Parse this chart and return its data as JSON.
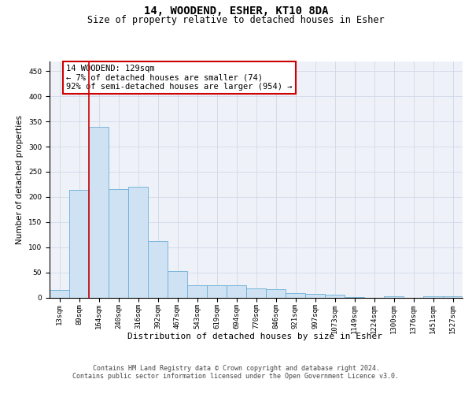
{
  "title": "14, WOODEND, ESHER, KT10 8DA",
  "subtitle": "Size of property relative to detached houses in Esher",
  "xlabel": "Distribution of detached houses by size in Esher",
  "ylabel": "Number of detached properties",
  "bar_labels": [
    "13sqm",
    "89sqm",
    "164sqm",
    "240sqm",
    "316sqm",
    "392sqm",
    "467sqm",
    "543sqm",
    "619sqm",
    "694sqm",
    "770sqm",
    "846sqm",
    "921sqm",
    "997sqm",
    "1073sqm",
    "1149sqm",
    "1224sqm",
    "1300sqm",
    "1376sqm",
    "1451sqm",
    "1527sqm"
  ],
  "bar_values": [
    15,
    214,
    339,
    215,
    220,
    112,
    53,
    25,
    24,
    24,
    18,
    17,
    9,
    7,
    6,
    1,
    0,
    3,
    0,
    3,
    2
  ],
  "bar_color": "#cfe2f3",
  "bar_edge_color": "#6baed6",
  "vline_x": 1.5,
  "vline_color": "#cc0000",
  "annotation_text": "14 WOODEND: 129sqm\n← 7% of detached houses are smaller (74)\n92% of semi-detached houses are larger (954) →",
  "annotation_box_color": "#ffffff",
  "annotation_box_edge": "#cc0000",
  "annotation_fontsize": 7.5,
  "title_fontsize": 10,
  "subtitle_fontsize": 8.5,
  "xlabel_fontsize": 8,
  "ylabel_fontsize": 7.5,
  "tick_fontsize": 6.5,
  "ylim": [
    0,
    470
  ],
  "yticks": [
    0,
    50,
    100,
    150,
    200,
    250,
    300,
    350,
    400,
    450
  ],
  "footer_line1": "Contains HM Land Registry data © Crown copyright and database right 2024.",
  "footer_line2": "Contains public sector information licensed under the Open Government Licence v3.0.",
  "footer_fontsize": 6,
  "grid_color": "#d0d8e8",
  "bg_color": "#eef2f8"
}
